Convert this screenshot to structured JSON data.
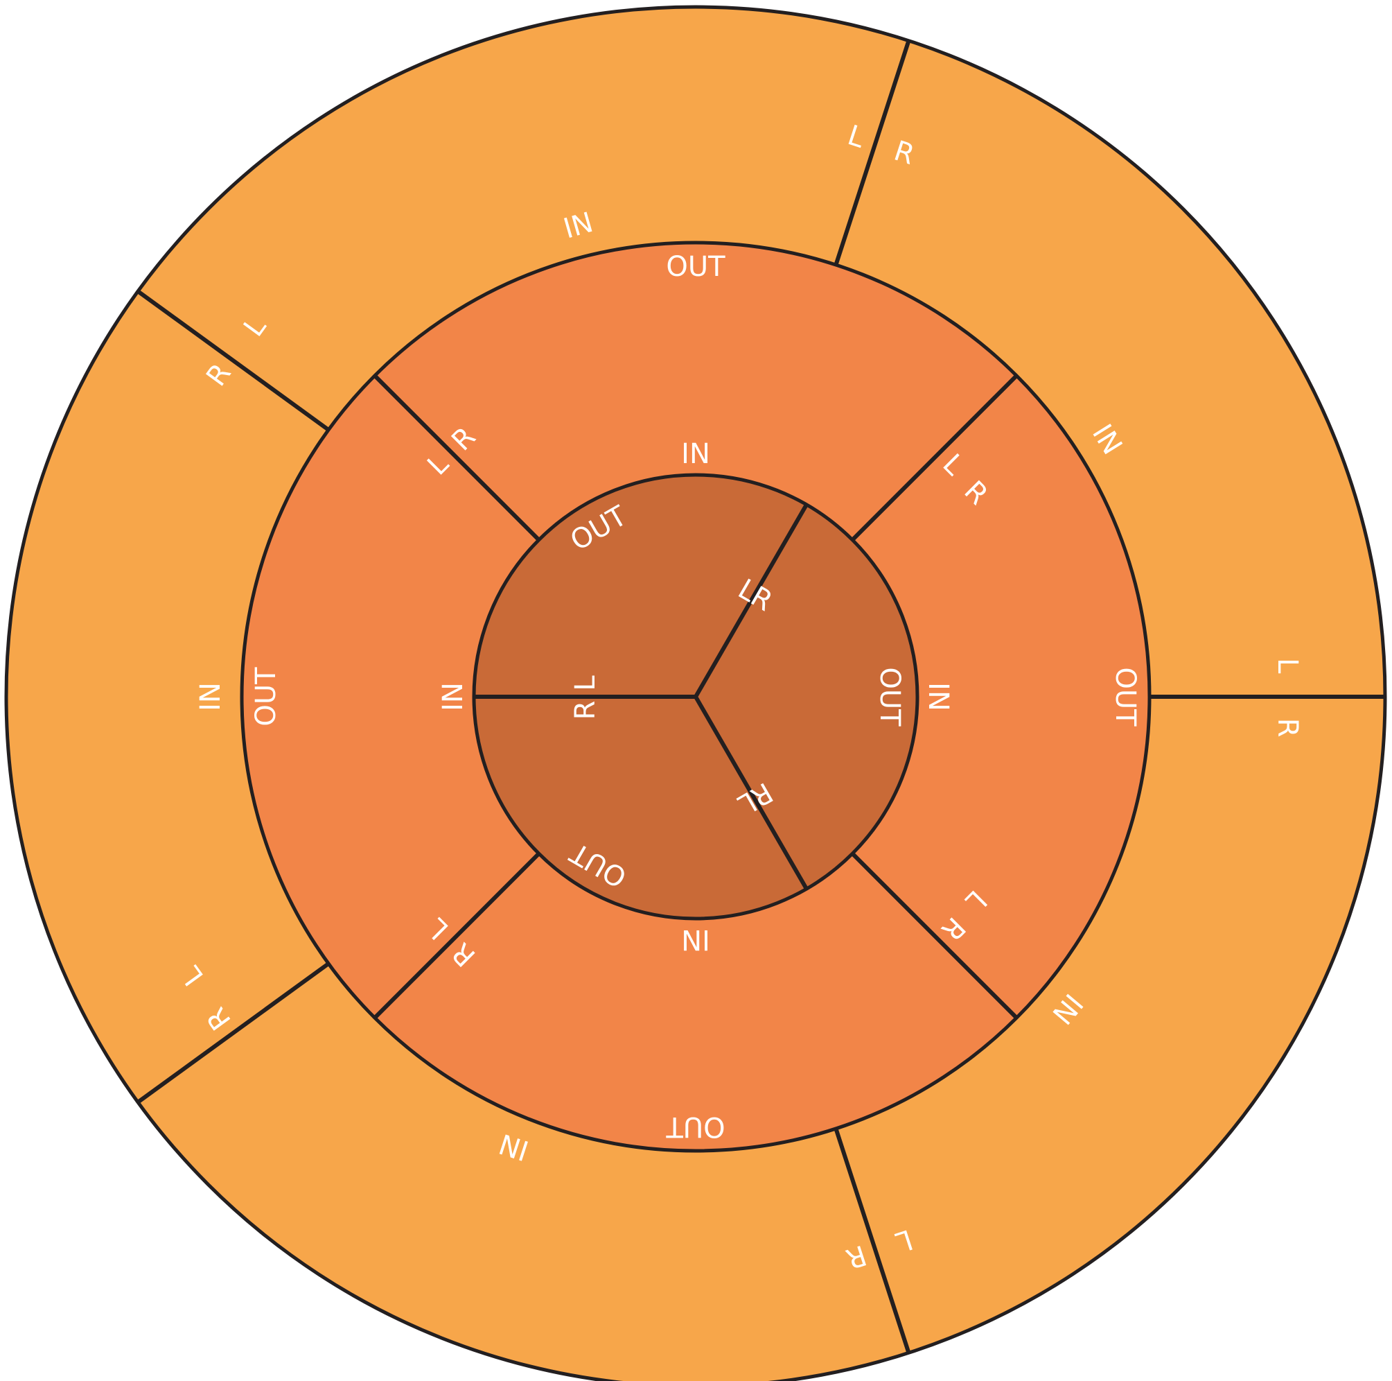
{
  "colors": {
    "outer_ring": "#F7A64A",
    "middle_ring": "#F28548",
    "inner_disc": "#C96A37",
    "stroke": "#231F20",
    "label": "#FFFFFF"
  },
  "labels": {
    "in": "IN",
    "out": "OUT",
    "left": "L",
    "right": "R"
  },
  "rings": [
    {
      "name": "outer",
      "segments": 5
    },
    {
      "name": "middle",
      "segments": 4
    },
    {
      "name": "inner",
      "segments": 3
    }
  ]
}
